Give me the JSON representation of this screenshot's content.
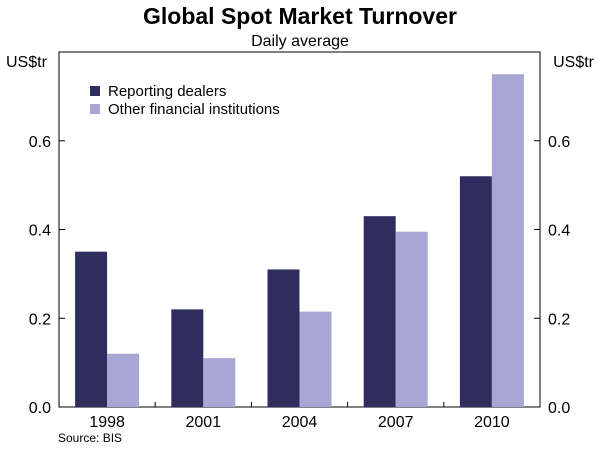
{
  "chart_data": {
    "type": "bar",
    "title": "Global Spot Market Turnover",
    "subtitle": "Daily average",
    "ylabel_left": "US$tr",
    "ylabel_right": "US$tr",
    "xlabel": "",
    "categories": [
      "1998",
      "2001",
      "2004",
      "2007",
      "2010"
    ],
    "series": [
      {
        "name": "Reporting dealers",
        "color": "#2e2d5f",
        "values": [
          0.35,
          0.22,
          0.31,
          0.43,
          0.52
        ]
      },
      {
        "name": "Other financial institutions",
        "color": "#a8a6d2",
        "values": [
          0.12,
          0.11,
          0.215,
          0.395,
          0.75
        ]
      }
    ],
    "ylim": [
      0,
      0.8
    ],
    "yticks": [
      0,
      0.2,
      0.4,
      0.6
    ],
    "ytick_labels": [
      "0.0",
      "0.2",
      "0.4",
      "0.6"
    ],
    "legend_position": "top-left",
    "source": "Source: BIS",
    "grid": false
  }
}
